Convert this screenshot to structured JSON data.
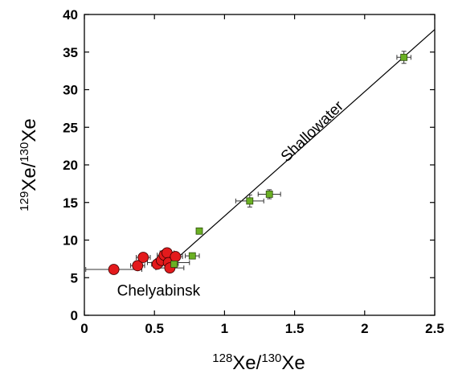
{
  "chart_data": {
    "type": "scatter",
    "title": "",
    "xlabel": {
      "sup": "128",
      "base": "Xe/",
      "sup2": "130",
      "base2": "Xe"
    },
    "ylabel": {
      "sup": "129",
      "base": "Xe/",
      "sup2": "130",
      "base2": "Xe"
    },
    "xlim": [
      0,
      2.5
    ],
    "ylim": [
      0,
      40
    ],
    "xticks": [
      "0",
      "0.5",
      "1",
      "1.5",
      "2",
      "2.5"
    ],
    "xtick_values": [
      0,
      0.5,
      1,
      1.5,
      2,
      2.5
    ],
    "yticks": [
      "0",
      "5",
      "10",
      "15",
      "20",
      "25",
      "30",
      "35",
      "40"
    ],
    "ytick_values": [
      0,
      5,
      10,
      15,
      20,
      25,
      30,
      35,
      40
    ],
    "grid": false,
    "series": [
      {
        "marker": "circle",
        "color": "#e31a1c",
        "points": [
          {
            "x": 0.21,
            "y": 6.1,
            "xerr": 0.2,
            "yerr": 0
          },
          {
            "x": 0.38,
            "y": 6.6,
            "xerr": 0.05,
            "yerr": 0
          },
          {
            "x": 0.42,
            "y": 7.7,
            "xerr": 0.05,
            "yerr": 0
          },
          {
            "x": 0.52,
            "y": 6.8,
            "xerr": 0.04,
            "yerr": 0
          },
          {
            "x": 0.55,
            "y": 7.3,
            "xerr": 0.04,
            "yerr": 0
          },
          {
            "x": 0.57,
            "y": 8.0,
            "xerr": 0.05,
            "yerr": 0.4
          },
          {
            "x": 0.59,
            "y": 8.3,
            "xerr": 0.05,
            "yerr": 0.4
          },
          {
            "x": 0.6,
            "y": 7.0,
            "xerr": 0.15,
            "yerr": 0
          },
          {
            "x": 0.61,
            "y": 6.3,
            "xerr": 0.1,
            "yerr": 0.5
          },
          {
            "x": 0.65,
            "y": 7.8,
            "xerr": 0.05,
            "yerr": 0
          }
        ]
      },
      {
        "marker": "square",
        "color": "#6ab023",
        "points": [
          {
            "x": 0.64,
            "y": 6.8,
            "xerr": 0.03,
            "yerr": 0
          },
          {
            "x": 0.77,
            "y": 7.9,
            "xerr": 0.05,
            "yerr": 0
          },
          {
            "x": 0.82,
            "y": 11.2,
            "xerr": 0,
            "yerr": 0
          },
          {
            "x": 1.18,
            "y": 15.2,
            "xerr": 0.1,
            "yerr": 0.8
          },
          {
            "x": 1.32,
            "y": 16.1,
            "xerr": 0.08,
            "yerr": 0.6
          },
          {
            "x": 2.28,
            "y": 34.3,
            "xerr": 0.05,
            "yerr": 0.8
          }
        ]
      }
    ],
    "trendline": {
      "x1": 0.65,
      "y1": 7.4,
      "x2": 2.5,
      "y2": 38.0
    },
    "annotations": [
      {
        "text": "Shallowater",
        "x": 1.65,
        "y": 24.0,
        "angle": -44
      },
      {
        "text": "Chelyabinsk",
        "x": 0.53,
        "y": 2.6,
        "angle": 0
      }
    ]
  }
}
